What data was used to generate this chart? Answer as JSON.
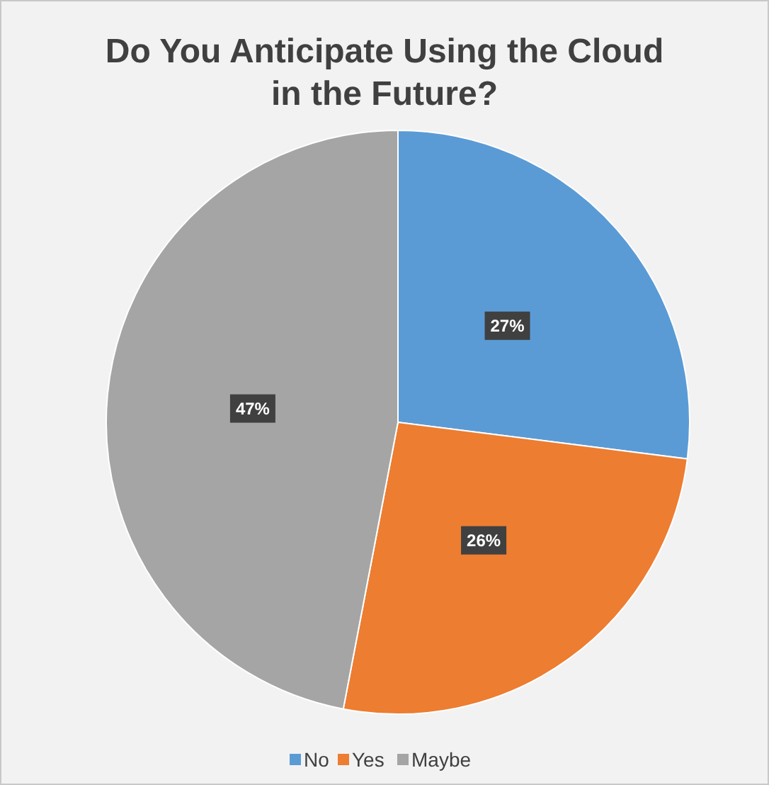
{
  "chart_data": {
    "type": "pie",
    "title": "Do You Anticipate Using the Cloud in the Future?",
    "categories": [
      "No",
      "Yes",
      "Maybe"
    ],
    "values": [
      27,
      26,
      47
    ],
    "colors": [
      "#5b9bd5",
      "#ed7d31",
      "#a5a5a5"
    ],
    "value_labels": [
      "27%",
      "26%",
      "47%"
    ],
    "legend": "bottom"
  }
}
